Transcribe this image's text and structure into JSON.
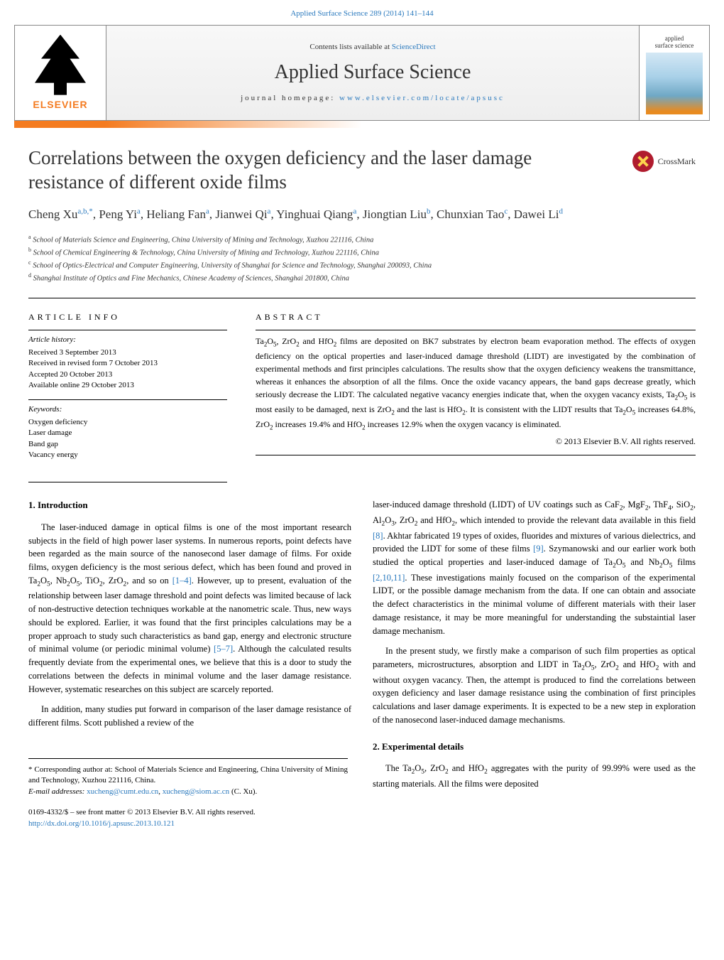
{
  "top_link": {
    "text": "Applied Surface Science 289 (2014) 141–144",
    "href_color": "#2878bd"
  },
  "header": {
    "contents_line": "Contents lists available at",
    "contents_link": "ScienceDirect",
    "journal_title": "Applied Surface Science",
    "homepage_prefix": "journal homepage:",
    "homepage_url": "www.elsevier.com/locate/apsusc",
    "elsevier_label": "ELSEVIER",
    "cover_label1": "applied",
    "cover_label2": "surface science"
  },
  "colors": {
    "accent_orange": "#f47b20",
    "link_blue": "#2878bd",
    "crossmark_red": "#b01c2e",
    "text": "#333333"
  },
  "title": "Correlations between the oxygen deficiency and the laser damage resistance of different oxide films",
  "crossmark_label": "CrossMark",
  "authors_html": "Cheng Xu<span class=\"sup\">a,b,*</span>, Peng Yi<span class=\"sup\">a</span>, Heliang Fan<span class=\"sup\">a</span>, Jianwei Qi<span class=\"sup\">a</span>, Yinghuai Qiang<span class=\"sup\">a</span>, Jiongtian Liu<span class=\"sup\">b</span>, Chunxian Tao<span class=\"sup\">c</span>, Dawei Li<span class=\"sup\">d</span>",
  "affiliations": [
    {
      "sup": "a",
      "text": "School of Materials Science and Engineering, China University of Mining and Technology, Xuzhou 221116, China"
    },
    {
      "sup": "b",
      "text": "School of Chemical Engineering & Technology, China University of Mining and Technology, Xuzhou 221116, China"
    },
    {
      "sup": "c",
      "text": "School of Optics-Electrical and Computer Engineering, University of Shanghai for Science and Technology, Shanghai 200093, China"
    },
    {
      "sup": "d",
      "text": "Shanghai Institute of Optics and Fine Mechanics, Chinese Academy of Sciences, Shanghai 201800, China"
    }
  ],
  "article_info": {
    "heading": "ARTICLE INFO",
    "history_label": "Article history:",
    "history": [
      "Received 3 September 2013",
      "Received in revised form 7 October 2013",
      "Accepted 20 October 2013",
      "Available online 29 October 2013"
    ],
    "keywords_label": "Keywords:",
    "keywords": [
      "Oxygen deficiency",
      "Laser damage",
      "Band gap",
      "Vacancy energy"
    ]
  },
  "abstract": {
    "heading": "ABSTRACT",
    "text_html": "Ta<sub>2</sub>O<sub>5</sub>, ZrO<sub>2</sub> and HfO<sub>2</sub> films are deposited on BK7 substrates by electron beam evaporation method. The effects of oxygen deficiency on the optical properties and laser-induced damage threshold (LIDT) are investigated by the combination of experimental methods and first principles calculations. The results show that the oxygen deficiency weakens the transmittance, whereas it enhances the absorption of all the films. Once the oxide vacancy appears, the band gaps decrease greatly, which seriously decrease the LIDT. The calculated negative vacancy energies indicate that, when the oxygen vacancy exists, Ta<sub>2</sub>O<sub>5</sub> is most easily to be damaged, next is ZrO<sub>2</sub> and the last is HfO<sub>2</sub>. It is consistent with the LIDT results that Ta<sub>2</sub>O<sub>5</sub> increases 64.8%, ZrO<sub>2</sub> increases 19.4% and HfO<sub>2</sub> increases 12.9% when the oxygen vacancy is eliminated.",
    "copyright": "© 2013 Elsevier B.V. All rights reserved."
  },
  "sections": {
    "intro_heading": "1. Introduction",
    "intro_p1_html": "The laser-induced damage in optical films is one of the most important research subjects in the field of high power laser systems. In numerous reports, point defects have been regarded as the main source of the nanosecond laser damage of films. For oxide films, oxygen deficiency is the most serious defect, which has been found and proved in Ta<sub>2</sub>O<sub>5</sub>, Nb<sub>2</sub>O<sub>5</sub>, TiO<sub>2</sub>, ZrO<sub>2</sub>, and so on <span class=\"cite\">[1–4]</span>. However, up to present, evaluation of the relationship between laser damage threshold and point defects was limited because of lack of non-destructive detection techniques workable at the nanometric scale. Thus, new ways should be explored. Earlier, it was found that the first principles calculations may be a proper approach to study such characteristics as band gap, energy and electronic structure of minimal volume (or periodic minimal volume) <span class=\"cite\">[5–7]</span>. Although the calculated results frequently deviate from the experimental ones, we believe that this is a door to study the correlations between the defects in minimal volume and the laser damage resistance. However, systematic researches on this subject are scarcely reported.",
    "intro_p2_html": "In addition, many studies put forward in comparison of the laser damage resistance of different films. Scott published a review of the",
    "col2_p1_html": "laser-induced damage threshold (LIDT) of UV coatings such as CaF<sub>2</sub>, MgF<sub>2</sub>, ThF<sub>4</sub>, SiO<sub>2</sub>, Al<sub>2</sub>O<sub>3</sub>, ZrO<sub>2</sub> and HfO<sub>2</sub>, which intended to provide the relevant data available in this field <span class=\"cite\">[8]</span>. Akhtar fabricated 19 types of oxides, fluorides and mixtures of various dielectrics, and provided the LIDT for some of these films <span class=\"cite\">[9]</span>. Szymanowski and our earlier work both studied the optical properties and laser-induced damage of Ta<sub>2</sub>O<sub>5</sub> and Nb<sub>2</sub>O<sub>5</sub> films <span class=\"cite\">[2,10,11]</span>. These investigations mainly focused on the comparison of the experimental LIDT, or the possible damage mechanism from the data. If one can obtain and associate the defect characteristics in the minimal volume of different materials with their laser damage resistance, it may be more meaningful for understanding the substaintial laser damage mechanism.",
    "col2_p2_html": "In the present study, we firstly make a comparison of such film properties as optical parameters, microstructures, absorption and LIDT in Ta<sub>2</sub>O<sub>5</sub>, ZrO<sub>2</sub> and HfO<sub>2</sub> with and without oxygen vacancy. Then, the attempt is produced to find the correlations between oxygen deficiency and laser damage resistance using the combination of first principles calculations and laser damage experiments. It is expected to be a new step in exploration of the nanosecond laser-induced damage mechanisms.",
    "exp_heading": "2. Experimental details",
    "exp_p1_html": "The Ta<sub>2</sub>O<sub>5</sub>, ZrO<sub>2</sub> and HfO<sub>2</sub> aggregates with the purity of 99.99% were used as the starting materials. All the films were deposited"
  },
  "footnote": {
    "corresponding": "* Corresponding author at: School of Materials Science and Engineering, China University of Mining and Technology, Xuzhou 221116, China.",
    "email_label": "E-mail addresses:",
    "email1": "xucheng@cumt.edu.cn",
    "email2": "xucheng@siom.ac.cn",
    "email_suffix": "(C. Xu)."
  },
  "issn": {
    "line1": "0169-4332/$ – see front matter © 2013 Elsevier B.V. All rights reserved.",
    "doi": "http://dx.doi.org/10.1016/j.apsusc.2013.10.121"
  }
}
